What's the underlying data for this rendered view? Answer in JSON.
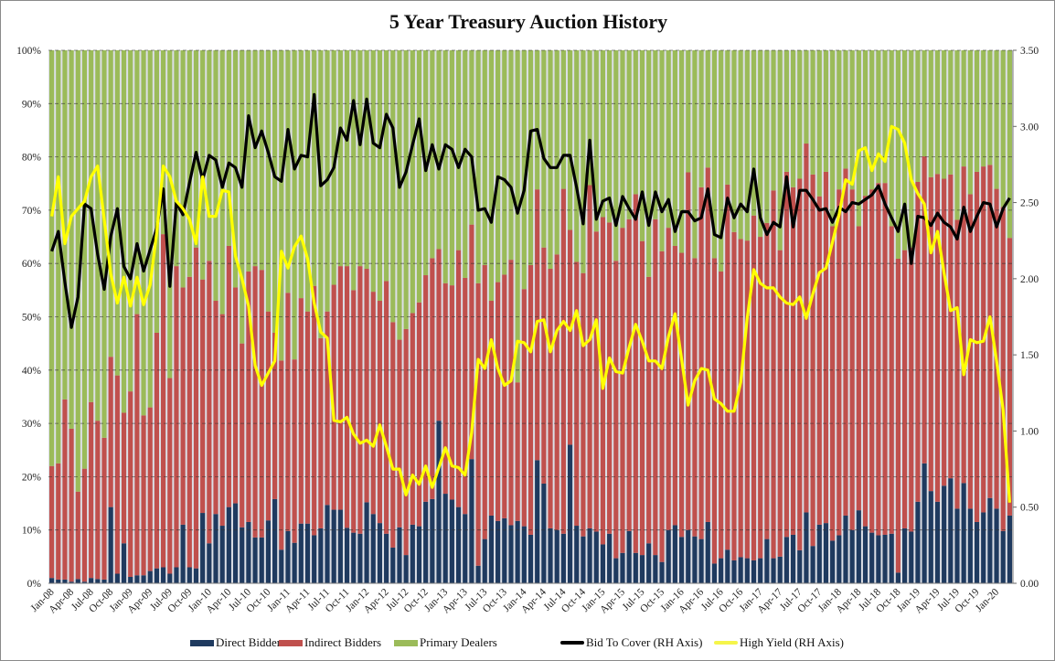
{
  "chart_data": {
    "type": "bar",
    "stacked": true,
    "title": "5 Year Treasury Auction History",
    "frequency": "monthly",
    "first_period": "Jan-08",
    "last_period": "Mar-20",
    "x_tick_labels": [
      "Jan-08",
      "Apr-08",
      "Jul-08",
      "Oct-08",
      "Jan-09",
      "Apr-09",
      "Jul-09",
      "Oct-09",
      "Jan-10",
      "Apr-10",
      "Jul-10",
      "Oct-10",
      "Jan-11",
      "Apr-11",
      "Jul-11",
      "Oct-11",
      "Jan-12",
      "Apr-12",
      "Jul-12",
      "Oct-12",
      "Jan-13",
      "Apr-13",
      "Jul-13",
      "Oct-13",
      "Jan-14",
      "Apr-14",
      "Jul-14",
      "Oct-14",
      "Jan-15",
      "Apr-15",
      "Jul-15",
      "Oct-15",
      "Jan-16",
      "Apr-16",
      "Jul-16",
      "Oct-16",
      "Jan-17",
      "Apr-17",
      "Jul-17",
      "Oct-17",
      "Jan-18",
      "Apr-18",
      "Jul-18",
      "Oct-18",
      "Jan-19",
      "Apr-19",
      "Jul-19",
      "Oct-19",
      "Jan-20"
    ],
    "y_left": {
      "ticks": [
        "0%",
        "10%",
        "20%",
        "30%",
        "40%",
        "50%",
        "60%",
        "70%",
        "80%",
        "90%",
        "100%"
      ],
      "range": [
        0,
        100
      ],
      "unit": "%"
    },
    "y_right": {
      "ticks": [
        "0.00",
        "0.50",
        "1.00",
        "1.50",
        "2.00",
        "2.50",
        "3.00",
        "3.50"
      ],
      "range": [
        0,
        3.5
      ]
    },
    "grid": true,
    "legend_position": "bottom",
    "colors": {
      "direct": "#1f3a5f",
      "indirect": "#c0504d",
      "primary": "#9bbb59",
      "btc": "#000000",
      "yield": "#ffff00",
      "gap": "#dcdfe6"
    },
    "series": [
      {
        "name": "Direct Bidders",
        "axis": "left",
        "kind": "bar",
        "values": [
          1,
          0.7,
          0.7,
          0.3,
          0.8,
          0.3,
          1,
          0.8,
          0.7,
          14.3,
          1.8,
          7.5,
          1.2,
          1.5,
          1.5,
          2.3,
          2.8,
          3,
          1.8,
          3,
          11,
          3,
          2.8,
          13.2,
          7.5,
          13,
          10.8,
          14.3,
          15,
          10.5,
          11.5,
          8.6,
          8.6,
          11.8,
          15.8,
          6.3,
          9.8,
          7.6,
          11.2,
          11.2,
          9,
          10.3,
          14.7,
          13.8,
          13.8,
          10.4,
          9.5,
          9.3,
          15.2,
          13,
          11.3,
          9.3,
          6.7,
          10.5,
          5.3,
          11,
          10.7,
          15.3,
          15.8,
          30.5,
          16.8,
          15.7,
          14.3,
          13,
          23.3,
          3.3,
          8.3,
          12.7,
          11.7,
          12.2,
          10.9,
          11.7,
          10.7,
          9.1,
          23.1,
          18.7,
          10.3,
          10,
          9.3,
          26,
          10.8,
          8.8,
          10.3,
          9.7,
          7.3,
          9.3,
          4.7,
          5.7,
          9.8,
          5.7,
          5.3,
          7.5,
          5.3,
          4,
          10,
          10.9,
          8.7,
          10,
          8.8,
          8.3,
          11.5,
          3.7,
          4.7,
          6.3,
          4.3,
          4.9,
          4.7,
          4.3,
          4.7,
          8.3,
          4.7,
          5,
          8.7,
          9.1,
          6.2,
          13.3,
          7,
          11,
          11.3,
          8,
          9,
          12.7,
          10,
          13.7,
          10.7,
          9.5,
          9,
          9.1,
          9.3,
          2,
          10.3,
          9.7,
          15.3,
          22.5,
          17.3,
          15.3,
          18.3,
          19.7,
          14,
          18.8,
          14,
          11.5,
          13.3,
          16,
          14,
          9.8,
          12.7
        ]
      },
      {
        "name": "Indirect Bidders",
        "axis": "left",
        "kind": "bar",
        "values": [
          21,
          21.8,
          33.8,
          28.7,
          16.4,
          21.2,
          33,
          29.7,
          26.6,
          28.2,
          37.2,
          24.5,
          34.8,
          49,
          30,
          30.7,
          44.2,
          62.5,
          36.7,
          56.5,
          44.5,
          54.5,
          60.2,
          43.8,
          53,
          40,
          39.7,
          49,
          40.5,
          34.5,
          47,
          50.9,
          50.2,
          39.2,
          31.2,
          35.5,
          44.7,
          34.4,
          42.3,
          39.8,
          46.8,
          35.7,
          36.3,
          42.2,
          45.7,
          49.1,
          45.5,
          50.2,
          43.8,
          41.7,
          41.7,
          47.4,
          42.3,
          35.2,
          42.4,
          39.7,
          42,
          42.5,
          45.2,
          32.2,
          39.5,
          40.2,
          48.2,
          44.3,
          44,
          53,
          51.4,
          40.3,
          44.8,
          45.7,
          49.8,
          26,
          44.5,
          50.6,
          50.8,
          44.3,
          48.7,
          51.7,
          64.7,
          40.3,
          49.5,
          49.4,
          64.4,
          56.3,
          61.4,
          58.4,
          55.8,
          61,
          58.5,
          67.3,
          58.9,
          50,
          63,
          58.3,
          56.7,
          52.4,
          53.3,
          67.1,
          52.2,
          66,
          66.5,
          57.3,
          53.8,
          68.5,
          61.6,
          59.7,
          59.6,
          64.7,
          60.3,
          59.3,
          69,
          57.5,
          68.5,
          65.2,
          69.7,
          69.2,
          69.7,
          61.6,
          65.9,
          59,
          64.9,
          65.1,
          63.9,
          53.3,
          62,
          64.4,
          66.1,
          66,
          57.7,
          58.9,
          52.2,
          53.3,
          60,
          57.6,
          58.9,
          61.5,
          57.6,
          57,
          54.2,
          59.4,
          59,
          65.7,
          64.9,
          62.5,
          60,
          60.8,
          52.1
        ]
      },
      {
        "name": "Primary Dealers",
        "axis": "left",
        "kind": "bar",
        "derived": "100 - direct - indirect"
      },
      {
        "name": "Bid To Cover (RH Axis)",
        "axis": "right",
        "kind": "line",
        "values": [
          2.18,
          2.31,
          1.98,
          1.68,
          1.88,
          2.49,
          2.46,
          2.16,
          1.93,
          2.28,
          2.46,
          2.08,
          2.0,
          2.23,
          2.05,
          2.19,
          2.33,
          2.59,
          1.95,
          2.5,
          2.42,
          2.63,
          2.83,
          2.65,
          2.81,
          2.78,
          2.6,
          2.76,
          2.73,
          2.6,
          3.07,
          2.86,
          2.97,
          2.83,
          2.67,
          2.64,
          2.98,
          2.72,
          2.81,
          2.8,
          3.21,
          2.61,
          2.65,
          2.73,
          2.99,
          2.91,
          3.17,
          2.88,
          3.18,
          2.89,
          2.86,
          3.08,
          2.99,
          2.6,
          2.7,
          2.88,
          3.05,
          2.71,
          2.88,
          2.72,
          2.88,
          2.85,
          2.73,
          2.85,
          2.8,
          2.45,
          2.46,
          2.37,
          2.67,
          2.65,
          2.6,
          2.43,
          2.58,
          2.97,
          2.98,
          2.79,
          2.73,
          2.73,
          2.81,
          2.81,
          2.6,
          2.36,
          2.91,
          2.39,
          2.51,
          2.53,
          2.35,
          2.54,
          2.46,
          2.39,
          2.57,
          2.35,
          2.57,
          2.44,
          2.52,
          2.31,
          2.44,
          2.44,
          2.38,
          2.4,
          2.59,
          2.29,
          2.27,
          2.53,
          2.4,
          2.49,
          2.44,
          2.72,
          2.4,
          2.29,
          2.37,
          2.34,
          2.67,
          2.34,
          2.58,
          2.58,
          2.52,
          2.45,
          2.46,
          2.37,
          2.47,
          2.44,
          2.5,
          2.49,
          2.52,
          2.55,
          2.61,
          2.49,
          2.4,
          2.31,
          2.49,
          2.1,
          2.41,
          2.4,
          2.35,
          2.43,
          2.37,
          2.34,
          2.26,
          2.47,
          2.31,
          2.41,
          2.5,
          2.49,
          2.34,
          2.46,
          2.53
        ]
      },
      {
        "name": "High Yield (RH Axis)",
        "axis": "right",
        "kind": "line",
        "values": [
          2.41,
          2.67,
          2.23,
          2.41,
          2.46,
          2.51,
          2.67,
          2.74,
          2.39,
          2.03,
          1.84,
          2.01,
          1.82,
          2.01,
          1.83,
          1.96,
          2.3,
          2.74,
          2.67,
          2.51,
          2.46,
          2.39,
          2.23,
          2.67,
          2.41,
          2.41,
          2.58,
          2.57,
          2.15,
          2.0,
          1.82,
          1.43,
          1.3,
          1.38,
          1.46,
          2.18,
          2.07,
          2.21,
          2.28,
          2.13,
          1.84,
          1.65,
          1.61,
          1.07,
          1.06,
          1.09,
          0.98,
          0.92,
          0.94,
          0.9,
          1.04,
          0.9,
          0.75,
          0.75,
          0.58,
          0.71,
          0.65,
          0.77,
          0.63,
          0.76,
          0.89,
          0.77,
          0.76,
          0.71,
          0.99,
          1.47,
          1.41,
          1.6,
          1.41,
          1.3,
          1.33,
          1.59,
          1.58,
          1.52,
          1.72,
          1.73,
          1.52,
          1.66,
          1.72,
          1.66,
          1.79,
          1.56,
          1.6,
          1.73,
          1.28,
          1.48,
          1.39,
          1.38,
          1.55,
          1.7,
          1.59,
          1.46,
          1.46,
          1.41,
          1.62,
          1.77,
          1.47,
          1.17,
          1.33,
          1.41,
          1.4,
          1.21,
          1.18,
          1.13,
          1.13,
          1.32,
          1.74,
          2.06,
          1.97,
          1.94,
          1.94,
          1.88,
          1.84,
          1.83,
          1.88,
          1.74,
          1.9,
          2.04,
          2.07,
          2.24,
          2.42,
          2.65,
          2.62,
          2.84,
          2.86,
          2.71,
          2.82,
          2.77,
          3.0,
          2.98,
          2.89,
          2.65,
          2.56,
          2.49,
          2.17,
          2.31,
          2.04,
          1.79,
          1.81,
          1.37,
          1.6,
          1.58,
          1.59,
          1.75,
          1.46,
          1.14,
          0.53
        ]
      }
    ]
  }
}
